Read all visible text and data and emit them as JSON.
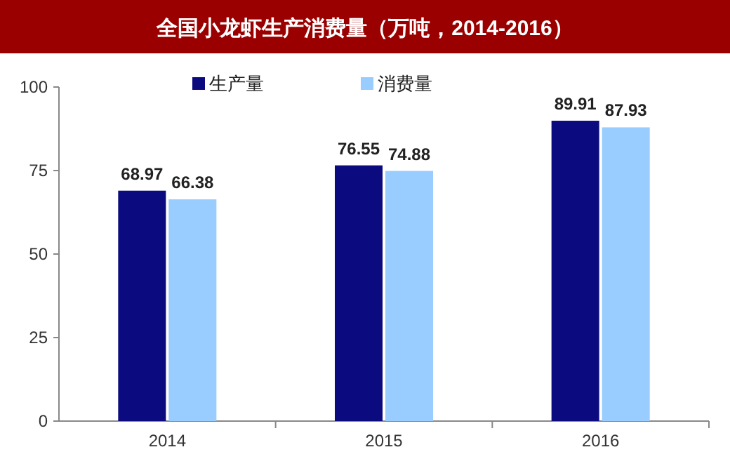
{
  "chart_data": {
    "type": "bar",
    "title": "全国小龙虾生产消费量（万吨，2014-2016）",
    "categories": [
      "2014",
      "2015",
      "2016"
    ],
    "series": [
      {
        "name": "生产量",
        "color": "#0b0b7f",
        "values": [
          68.97,
          76.55,
          89.91
        ]
      },
      {
        "name": "消费量",
        "color": "#99ccff",
        "values": [
          66.38,
          74.88,
          87.93
        ]
      }
    ],
    "ylim": [
      0,
      100
    ],
    "yticks": [
      0,
      25,
      50,
      75,
      100
    ],
    "grid": false,
    "legend": "top",
    "data_labels": true
  }
}
